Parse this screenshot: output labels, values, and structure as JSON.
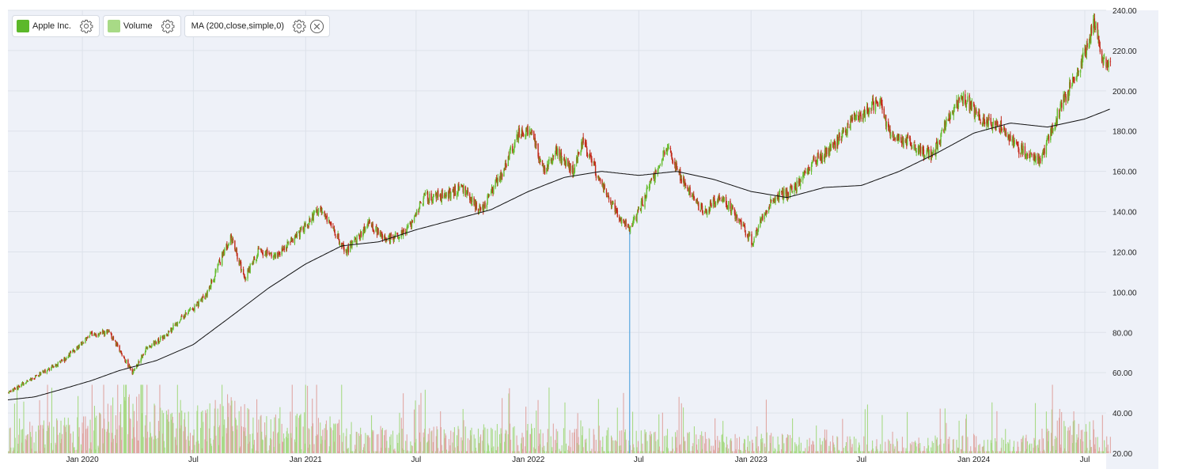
{
  "legend": {
    "items": [
      {
        "label": "Apple Inc.",
        "color": "#5cb82a"
      },
      {
        "label": "Volume",
        "color": "#a8da86"
      },
      {
        "label": "MA (200,close,simple,0)",
        "color": ""
      }
    ]
  },
  "colors": {
    "background": "#eef1f8",
    "grid": "#dde2ea",
    "up": "#64bc2c",
    "down": "#c22a1a",
    "volume_up": "#a8da86",
    "volume_down": "#e0a7a4",
    "ma": "#111111",
    "crosshair": "#5aa8e0"
  },
  "chart_data": {
    "type": "candlestick",
    "y_axis": {
      "min": 20,
      "max": 240,
      "ticks": [
        "240.00",
        "220.00",
        "200.00",
        "180.00",
        "160.00",
        "140.00",
        "120.00",
        "100.00",
        "80.00",
        "60.00",
        "40.00",
        "20.00"
      ],
      "position": "right"
    },
    "x_axis": {
      "start": "2019-09-01",
      "end": "2024-08-05",
      "tick_labels": [
        {
          "label": "Jan 2020",
          "date": "2020-01-01"
        },
        {
          "label": "Jul",
          "date": "2020-07-01"
        },
        {
          "label": "Jan 2021",
          "date": "2021-01-01"
        },
        {
          "label": "Jul",
          "date": "2021-07-01"
        },
        {
          "label": "Jan 2022",
          "date": "2022-01-01"
        },
        {
          "label": "Jul",
          "date": "2022-07-01"
        },
        {
          "label": "Jan 2023",
          "date": "2023-01-01"
        },
        {
          "label": "Jul",
          "date": "2023-07-01"
        },
        {
          "label": "Jan 2024",
          "date": "2024-01-01"
        },
        {
          "label": "Jul",
          "date": "2024-07-01"
        }
      ]
    },
    "grid": true,
    "crosshair_date": "2022-06-16",
    "price_series": {
      "name": "Apple Inc.",
      "dates": [
        "2019-09-01",
        "2019-10-15",
        "2019-12-01",
        "2020-01-15",
        "2020-02-15",
        "2020-03-23",
        "2020-04-15",
        "2020-05-15",
        "2020-06-15",
        "2020-07-20",
        "2020-08-31",
        "2020-09-23",
        "2020-10-15",
        "2020-11-15",
        "2020-12-15",
        "2021-01-26",
        "2021-03-08",
        "2021-04-15",
        "2021-05-15",
        "2021-06-15",
        "2021-07-15",
        "2021-08-15",
        "2021-09-15",
        "2021-10-15",
        "2021-11-15",
        "2021-12-15",
        "2022-01-03",
        "2022-01-27",
        "2022-02-15",
        "2022-03-15",
        "2022-04-01",
        "2022-04-15",
        "2022-05-15",
        "2022-06-16",
        "2022-07-15",
        "2022-08-17",
        "2022-09-15",
        "2022-10-15",
        "2022-11-15",
        "2022-12-15",
        "2023-01-03",
        "2023-02-01",
        "2023-03-15",
        "2023-04-15",
        "2023-05-15",
        "2023-06-15",
        "2023-07-31",
        "2023-08-15",
        "2023-09-15",
        "2023-10-26",
        "2023-11-15",
        "2023-12-14",
        "2024-01-15",
        "2024-02-15",
        "2024-03-15",
        "2024-04-19",
        "2024-05-10",
        "2024-06-11",
        "2024-07-01",
        "2024-07-16",
        "2024-08-05",
        "2024-08-12"
      ],
      "close": [
        50,
        58,
        66,
        79,
        80,
        60,
        72,
        78,
        88,
        97,
        128,
        107,
        120,
        118,
        127,
        142,
        120,
        134,
        126,
        130,
        147,
        148,
        152,
        140,
        157,
        178,
        182,
        159,
        170,
        160,
        175,
        164,
        145,
        130,
        150,
        173,
        152,
        140,
        148,
        134,
        125,
        145,
        152,
        165,
        172,
        185,
        196,
        178,
        175,
        167,
        184,
        197,
        185,
        182,
        171,
        165,
        183,
        205,
        218,
        234,
        209,
        216
      ]
    },
    "ma_series": {
      "name": "MA (200,close,simple,0)",
      "dates": [
        "2019-09-01",
        "2019-10-15",
        "2019-12-01",
        "2020-01-15",
        "2020-03-01",
        "2020-05-01",
        "2020-07-01",
        "2020-09-01",
        "2020-11-01",
        "2021-01-01",
        "2021-03-01",
        "2021-05-01",
        "2021-07-01",
        "2021-09-01",
        "2021-11-01",
        "2022-01-01",
        "2022-03-01",
        "2022-05-01",
        "2022-07-01",
        "2022-09-01",
        "2022-11-01",
        "2023-01-01",
        "2023-03-01",
        "2023-05-01",
        "2023-07-01",
        "2023-09-01",
        "2023-11-01",
        "2024-01-01",
        "2024-03-01",
        "2024-05-01",
        "2024-07-01",
        "2024-08-12"
      ],
      "values": [
        46.5,
        48,
        52,
        56,
        61,
        66,
        74,
        88,
        102,
        114,
        123,
        125,
        131,
        136,
        141,
        150,
        157,
        160,
        158,
        160,
        156,
        150,
        147,
        152,
        153,
        160,
        169,
        179,
        184,
        182,
        186,
        191
      ]
    },
    "volume_series": {
      "name": "Volume",
      "note_scale": "plotted on the lower part of the shared price scale",
      "dates": [
        "2019-09-01",
        "2019-12-01",
        "2020-02-15",
        "2020-03-15",
        "2020-04-15",
        "2020-06-01",
        "2020-08-31",
        "2020-10-15",
        "2021-01-01",
        "2021-04-01",
        "2021-07-01",
        "2021-10-01",
        "2022-01-01",
        "2022-04-01",
        "2022-07-01",
        "2022-10-01",
        "2023-01-01",
        "2023-04-01",
        "2023-07-01",
        "2023-10-01",
        "2024-01-01",
        "2024-04-01",
        "2024-06-11",
        "2024-07-15",
        "2024-08-12"
      ],
      "values": [
        32,
        34,
        40,
        50,
        42,
        35,
        44,
        34,
        36,
        30,
        29,
        30,
        31,
        30,
        29,
        27,
        27,
        25,
        25,
        25,
        26,
        26,
        36,
        30,
        28
      ]
    }
  }
}
